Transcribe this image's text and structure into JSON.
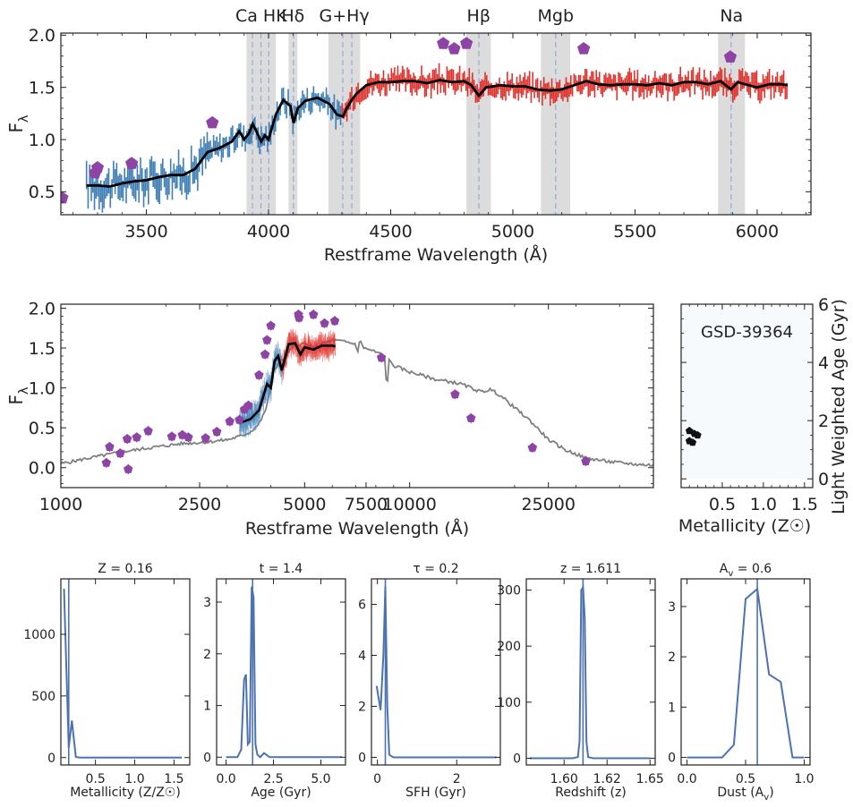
{
  "figure": {
    "object_id": "GSD-39364",
    "colors": {
      "blue": "#3f7fb6",
      "red": "#e0322d",
      "model": "#000000",
      "photometry": "#8e44a5",
      "fullsed": "#808080",
      "band": "#dcdcdc",
      "line": "#9fb0d8",
      "hist": "#4c72b0",
      "empty": "#f6fafd"
    }
  },
  "chart_data": [
    {
      "id": "spectrum_zoom",
      "type": "line",
      "xlabel": "Restframe Wavelength (Å)",
      "ylabel": "F_λ",
      "xlim": [
        3150,
        6220
      ],
      "ylim": [
        0.28,
        2.02
      ],
      "xticks": [
        3500,
        4000,
        4500,
        5000,
        5500,
        6000
      ],
      "yticks": [
        0.5,
        1.0,
        1.5,
        2.0
      ],
      "tick_labels_y": [
        "0.5",
        "1.0",
        "1.5",
        "2.0"
      ],
      "line_bands": [
        {
          "label": "Ca HK",
          "range": [
            3910,
            4030
          ],
          "lines": [
            3934,
            3969,
            4001
          ]
        },
        {
          "label": "Hδ",
          "range": [
            4082,
            4118
          ],
          "lines": [
            4102
          ]
        },
        {
          "label": "G+Hγ",
          "range": [
            4245,
            4375
          ],
          "lines": [
            4304,
            4341
          ]
        },
        {
          "label": "Hβ",
          "range": [
            4810,
            4910
          ],
          "lines": [
            4861
          ]
        },
        {
          "label": "Mgb",
          "range": [
            5115,
            5235
          ],
          "lines": [
            5175
          ]
        },
        {
          "label": "Na",
          "range": [
            5840,
            5950
          ],
          "lines": [
            5893
          ]
        }
      ],
      "model_curve": {
        "x": [
          3255,
          3300,
          3350,
          3400,
          3450,
          3500,
          3550,
          3600,
          3650,
          3700,
          3750,
          3800,
          3850,
          3880,
          3900,
          3920,
          3935,
          3950,
          3970,
          3985,
          4000,
          4030,
          4060,
          4090,
          4102,
          4120,
          4150,
          4200,
          4250,
          4280,
          4304,
          4320,
          4341,
          4360,
          4400,
          4450,
          4500,
          4550,
          4600,
          4650,
          4700,
          4750,
          4800,
          4830,
          4861,
          4890,
          4950,
          5000,
          5050,
          5100,
          5150,
          5200,
          5250,
          5300,
          5350,
          5400,
          5450,
          5500,
          5550,
          5600,
          5650,
          5700,
          5750,
          5800,
          5850,
          5893,
          5920,
          5950,
          6000,
          6050,
          6100,
          6125
        ],
        "y": [
          0.56,
          0.56,
          0.55,
          0.58,
          0.6,
          0.61,
          0.64,
          0.66,
          0.66,
          0.72,
          0.88,
          0.92,
          0.98,
          1.08,
          1.0,
          1.06,
          1.15,
          1.08,
          0.98,
          1.04,
          1.0,
          1.24,
          1.38,
          1.32,
          1.16,
          1.3,
          1.37,
          1.4,
          1.34,
          1.24,
          1.22,
          1.3,
          1.38,
          1.44,
          1.52,
          1.55,
          1.55,
          1.56,
          1.56,
          1.54,
          1.57,
          1.55,
          1.56,
          1.52,
          1.42,
          1.5,
          1.52,
          1.51,
          1.51,
          1.48,
          1.47,
          1.48,
          1.52,
          1.56,
          1.53,
          1.52,
          1.53,
          1.53,
          1.52,
          1.54,
          1.52,
          1.55,
          1.55,
          1.53,
          1.56,
          1.48,
          1.55,
          1.53,
          1.5,
          1.53,
          1.53,
          1.52
        ]
      },
      "photometry": {
        "x": [
          3155,
          3290,
          3300,
          3440,
          3770,
          4715,
          4760,
          4810,
          5290,
          5890
        ],
        "y": [
          0.44,
          0.68,
          0.73,
          0.77,
          1.16,
          1.92,
          1.87,
          1.92,
          1.87,
          1.79
        ]
      },
      "spectrum_blue": {
        "x_range": [
          3255,
          4300
        ]
      },
      "spectrum_red": {
        "x_range": [
          4300,
          6125
        ]
      }
    },
    {
      "id": "sed_full",
      "type": "line",
      "xlabel": "Restframe Wavelength (Å)",
      "ylabel": "F_λ",
      "xscale": "log",
      "xlim": [
        1000,
        50000
      ],
      "ylim": [
        -0.25,
        2.05
      ],
      "xticks": [
        1000,
        2500,
        5000,
        7500,
        10000,
        25000
      ],
      "tick_labels_x": [
        "1000",
        "2500",
        "5000",
        "7500",
        "10000",
        "25000"
      ],
      "yticks": [
        0.0,
        0.5,
        1.0,
        1.5,
        2.0
      ],
      "tick_labels_y": [
        "0.0",
        "0.5",
        "1.0",
        "1.5",
        "2.0"
      ],
      "full_sed": {
        "x": [
          1000,
          1200,
          1500,
          1800,
          2200,
          2600,
          3000,
          3300,
          3500,
          3700,
          3850,
          3950,
          4050,
          4200,
          4400,
          4600,
          4800,
          5000,
          5300,
          5600,
          6000,
          6500,
          7000,
          7100,
          7200,
          7400,
          8000,
          8500,
          8600,
          8700,
          9000,
          10000,
          11000,
          12000,
          13000,
          14000,
          15000,
          16000,
          17000,
          18000,
          20000,
          22000,
          25000,
          28000,
          32000,
          38000,
          45000,
          50000
        ],
        "y": [
          0.05,
          0.12,
          0.2,
          0.25,
          0.3,
          0.32,
          0.35,
          0.4,
          0.45,
          0.55,
          0.7,
          0.9,
          1.2,
          1.3,
          1.4,
          1.5,
          1.55,
          1.55,
          1.5,
          1.55,
          1.6,
          1.58,
          1.55,
          1.45,
          1.6,
          1.5,
          1.45,
          1.4,
          0.9,
          1.35,
          1.28,
          1.2,
          1.15,
          1.1,
          1.08,
          1.05,
          1.0,
          0.95,
          0.98,
          0.92,
          0.75,
          0.6,
          0.35,
          0.22,
          0.12,
          0.07,
          0.04,
          0.03
        ]
      },
      "fit_curve": {
        "x": [
          3255,
          3500,
          3700,
          3900,
          4000,
          4100,
          4200,
          4300,
          4500,
          4700,
          4861,
          5000,
          5300,
          5600,
          6000,
          6125
        ],
        "y": [
          0.56,
          0.61,
          0.72,
          1.05,
          1.0,
          1.34,
          1.4,
          1.22,
          1.55,
          1.56,
          1.42,
          1.51,
          1.48,
          1.53,
          1.53,
          1.52
        ]
      },
      "photometry": {
        "x": [
          1350,
          1380,
          1480,
          1550,
          1560,
          1650,
          1780,
          2080,
          2230,
          2320,
          2600,
          2800,
          3050,
          3250,
          3360,
          3450,
          3700,
          3850,
          3900,
          4000,
          4800,
          4820,
          5300,
          5700,
          6100,
          8300,
          13500,
          15000,
          22500,
          32000
        ],
        "y": [
          0.06,
          0.26,
          0.18,
          0.36,
          -0.02,
          0.38,
          0.46,
          0.39,
          0.41,
          0.38,
          0.37,
          0.45,
          0.58,
          0.6,
          0.73,
          0.78,
          1.16,
          1.42,
          1.6,
          1.78,
          1.92,
          1.88,
          1.92,
          1.81,
          1.84,
          1.38,
          0.92,
          0.62,
          0.25,
          0.08
        ]
      }
    },
    {
      "id": "age_metallicity",
      "type": "scatter",
      "title": "",
      "annotation": "GSD-39364",
      "xlabel": "Metallicity (Z☉)",
      "ylabel": "Light Weighted Age (Gyr)",
      "xlim": [
        0.0,
        1.6
      ],
      "ylim": [
        -0.3,
        6.0
      ],
      "xticks": [
        0.5,
        1.0,
        1.5
      ],
      "tick_labels_x": [
        "0.5",
        "1.0",
        "1.5"
      ],
      "yticks": [
        0,
        2,
        4,
        6
      ],
      "tick_labels_y": [
        "0",
        "2",
        "4",
        "6"
      ],
      "points": {
        "x": [
          0.1,
          0.2,
          0.14,
          0.1,
          0.16
        ],
        "y": [
          1.65,
          1.5,
          1.25,
          1.3,
          1.55
        ]
      }
    },
    {
      "id": "posterior_metallicity",
      "type": "line",
      "title": "Z = 0.16",
      "xlabel": "Metallicity (Z/Z☉)",
      "xlim": [
        0.06,
        1.7
      ],
      "ylim": [
        -60,
        1450
      ],
      "xticks": [
        0.5,
        1.0,
        1.5
      ],
      "tick_labels_x": [
        "0.5",
        "1.0",
        "1.5"
      ],
      "yticks": [
        0,
        500,
        1000
      ],
      "tick_labels_y": [
        "0",
        "500",
        "1000"
      ],
      "best": 0.16,
      "x": [
        0.1,
        0.16,
        0.2,
        0.25,
        0.3,
        0.5,
        1.0,
        1.6
      ],
      "y": [
        1370,
        80,
        300,
        5,
        0,
        0,
        0,
        0
      ]
    },
    {
      "id": "posterior_age",
      "type": "line",
      "title": "t = 1.4",
      "xlabel": "Age (Gyr)",
      "xlim": [
        -0.5,
        6.3
      ],
      "ylim": [
        -0.15,
        3.45
      ],
      "xticks": [
        0.0,
        2.5,
        5.0
      ],
      "tick_labels_x": [
        "0.0",
        "2.5",
        "5.0"
      ],
      "yticks": [
        0,
        1,
        2,
        3
      ],
      "tick_labels_y": [
        "0",
        "1",
        "2",
        "3"
      ],
      "best": 1.4,
      "x": [
        0,
        0.6,
        0.8,
        0.95,
        1.05,
        1.15,
        1.25,
        1.35,
        1.45,
        1.55,
        1.65,
        1.8,
        2.0,
        2.3,
        2.6,
        6.1
      ],
      "y": [
        0,
        0,
        0.15,
        1.5,
        1.6,
        0.25,
        0.3,
        3.3,
        3.1,
        0.25,
        0.05,
        0,
        0.08,
        0,
        0,
        0
      ]
    },
    {
      "id": "posterior_sfh",
      "type": "line",
      "title": "τ = 0.2",
      "xlabel": "SFH (Gyr)",
      "xlim": [
        -0.15,
        3.1
      ],
      "ylim": [
        -0.3,
        7.0
      ],
      "xticks": [
        0,
        2
      ],
      "tick_labels_x": [
        "0",
        "2"
      ],
      "yticks": [
        0,
        2,
        4,
        6
      ],
      "tick_labels_y": [
        "0",
        "2",
        "4",
        "6"
      ],
      "best": 0.2,
      "x": [
        -0.02,
        0.08,
        0.15,
        0.2,
        0.25,
        0.3,
        0.4,
        3.0
      ],
      "y": [
        2.8,
        1.85,
        4.0,
        6.7,
        2.0,
        0.1,
        0,
        0
      ]
    },
    {
      "id": "posterior_redshift",
      "type": "line",
      "title": "z = 1.611",
      "xlabel": "Redshift (z)",
      "xlim": [
        1.578,
        1.653
      ],
      "ylim": [
        -12,
        320
      ],
      "xticks": [
        1.6,
        1.625,
        1.65
      ],
      "tick_labels_x": [
        "1.60",
        "1.62",
        "1.65"
      ],
      "yticks": [
        0,
        100,
        200,
        300
      ],
      "tick_labels_y": [
        "0",
        "100",
        "200",
        "300"
      ],
      "best": 1.611,
      "x": [
        1.58,
        1.605,
        1.608,
        1.609,
        1.61,
        1.611,
        1.612,
        1.613,
        1.614,
        1.617,
        1.65
      ],
      "y": [
        0,
        0,
        2,
        30,
        300,
        305,
        250,
        30,
        2,
        0,
        0
      ]
    },
    {
      "id": "posterior_dust",
      "type": "line",
      "title": "A_v = 0.6",
      "xlabel": "Dust (A_v)",
      "xlim": [
        -0.05,
        1.05
      ],
      "ylim": [
        -0.15,
        3.55
      ],
      "xticks": [
        0.0,
        0.5,
        1.0
      ],
      "tick_labels_x": [
        "0.0",
        "0.5",
        "1.0"
      ],
      "yticks": [
        0,
        1,
        2,
        3
      ],
      "tick_labels_y": [
        "0",
        "1",
        "2",
        "3"
      ],
      "best": 0.6,
      "x": [
        0,
        0.3,
        0.4,
        0.5,
        0.6,
        0.7,
        0.8,
        0.9,
        1.0
      ],
      "y": [
        0,
        0,
        0.25,
        3.15,
        3.35,
        1.65,
        1.5,
        0,
        0
      ]
    }
  ]
}
